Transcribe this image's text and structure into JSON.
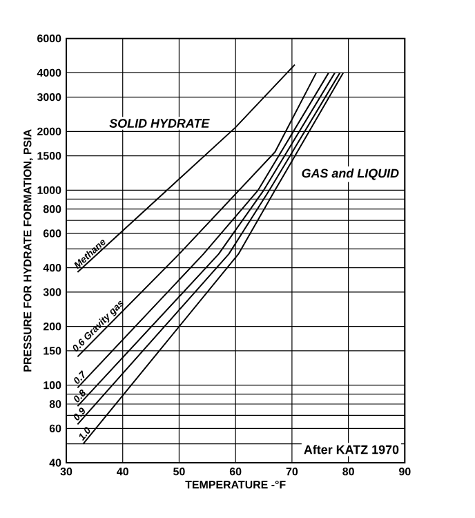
{
  "chart_data": {
    "type": "line",
    "xlabel": "TEMPERATURE -°F",
    "ylabel": "PRESSURE FOR HYDRATE FORMATION, PSIA",
    "log": "y",
    "grid": true,
    "xlim": [
      30,
      90
    ],
    "ylim": [
      40,
      6000
    ],
    "xticks": [
      30,
      40,
      50,
      60,
      70,
      80,
      90
    ],
    "yticks": [
      40,
      {
        "value": 50,
        "label": null
      },
      60,
      {
        "value": 70,
        "label": null
      },
      80,
      {
        "value": 90,
        "label": null
      },
      100,
      150,
      200,
      300,
      400,
      {
        "value": 500,
        "label": null
      },
      600,
      {
        "value": 700,
        "label": null
      },
      800,
      {
        "value": 900,
        "label": null
      },
      1000,
      1500,
      2000,
      3000,
      4000,
      6000
    ],
    "series": [
      {
        "name": "Methane",
        "color": "#000000",
        "x": [
          32,
          60,
          70.5
        ],
        "values": [
          380,
          2100,
          4400
        ]
      },
      {
        "name": "0.6 Gravity gas",
        "color": "#000000",
        "x": [
          32,
          50,
          67,
          74.3
        ],
        "values": [
          140,
          470,
          1570,
          4000
        ]
      },
      {
        "name": "0.7",
        "color": "#000000",
        "x": [
          32,
          54.3,
          64,
          76.5
        ],
        "values": [
          97,
          470,
          1000,
          4000
        ]
      },
      {
        "name": "0.8",
        "color": "#000000",
        "x": [
          32,
          57,
          65,
          77.6
        ],
        "values": [
          78,
          470,
          1000,
          4000
        ]
      },
      {
        "name": "0.9",
        "color": "#000000",
        "x": [
          32,
          58.8,
          66,
          78.5
        ],
        "values": [
          63,
          470,
          1000,
          4000
        ]
      },
      {
        "name": "1.0",
        "color": "#000000",
        "x": [
          33,
          60.5,
          67,
          79.1
        ],
        "values": [
          50,
          470,
          1000,
          4000
        ]
      }
    ],
    "annotations": [
      "SOLID HYDRATE",
      "GAS and LIQUID",
      "After KATZ 1970"
    ]
  }
}
